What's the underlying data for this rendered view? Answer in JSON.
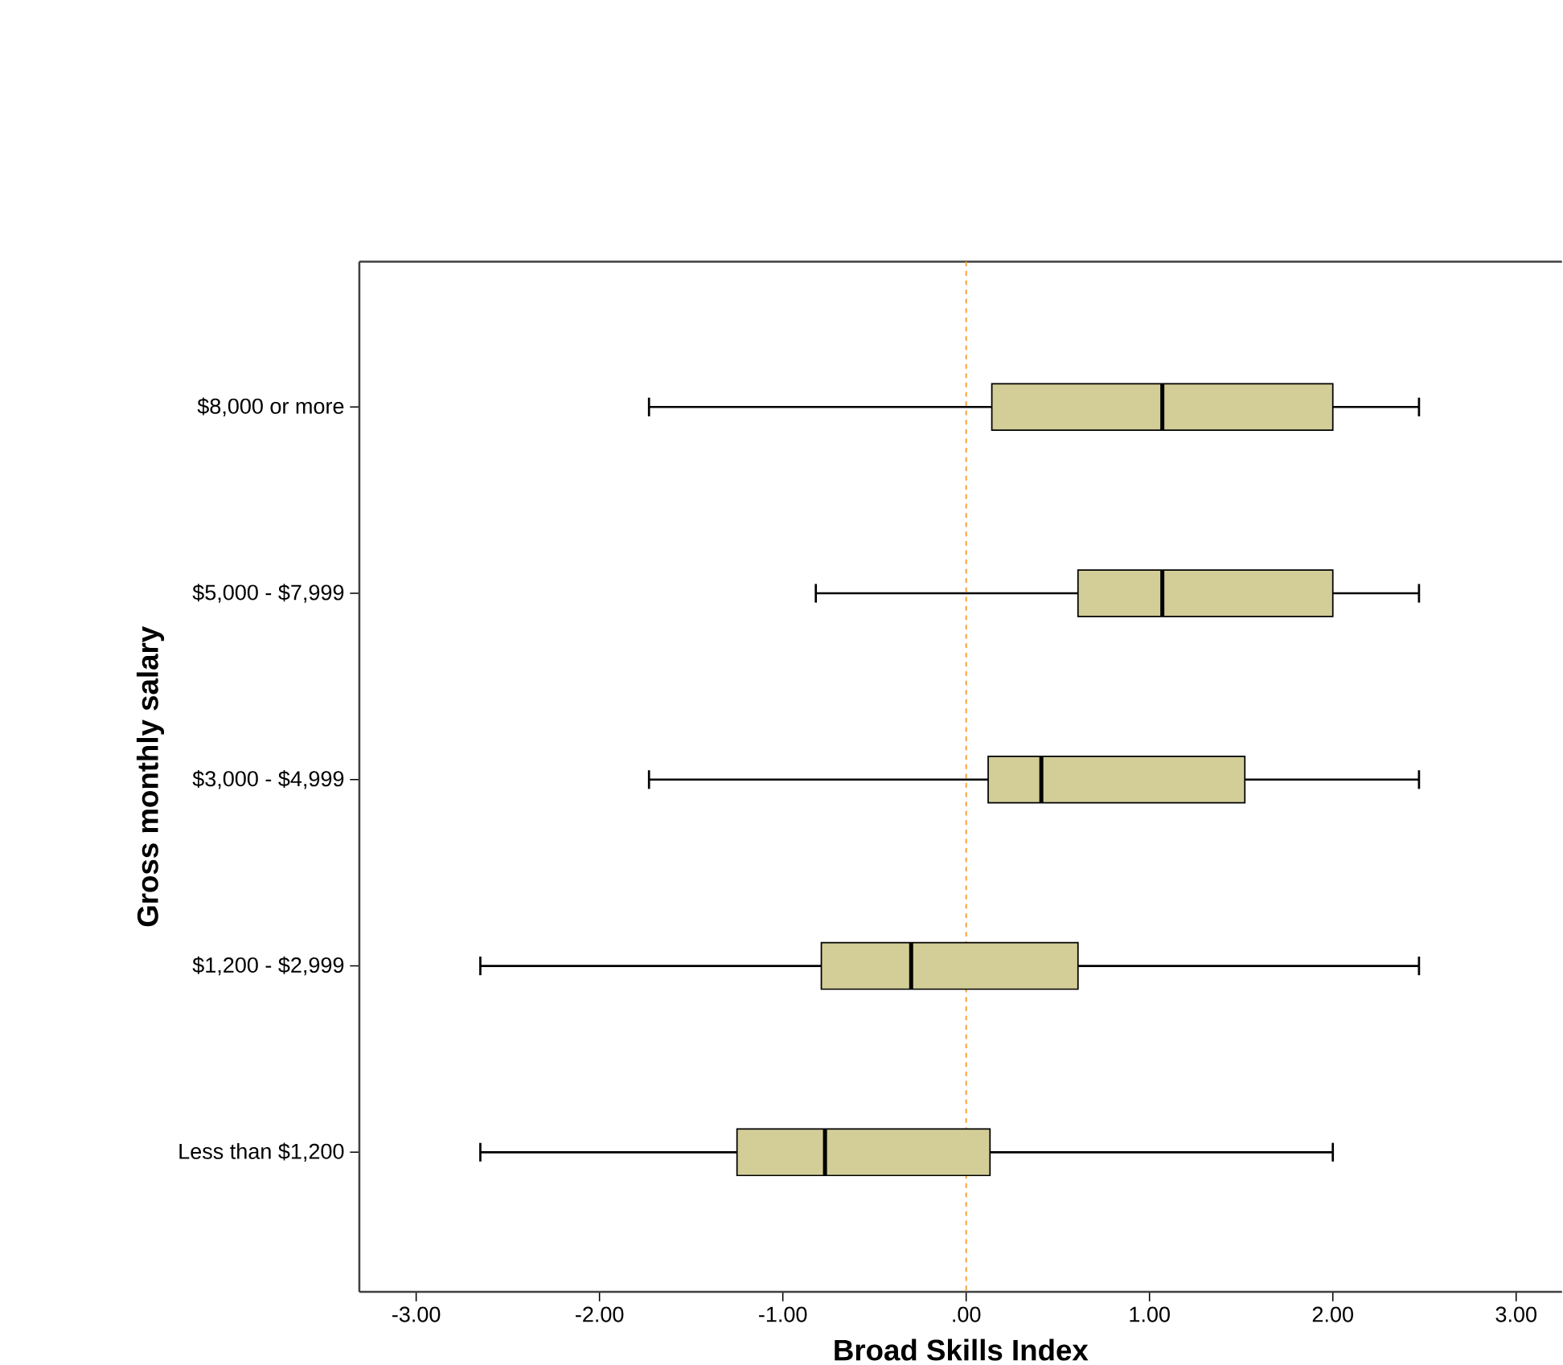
{
  "chart_data": {
    "type": "box",
    "orientation": "horizontal",
    "xlabel": "Broad Skills Index",
    "ylabel": "Gross monthly salary",
    "categories": [
      "$8,000 or more",
      "$5,000 - $7,999",
      "$3,000 - $4,999",
      "$1,200 - $2,999",
      "Less than $1,200"
    ],
    "color": "#d3ce98",
    "boxes": [
      {
        "low": -1.73,
        "q1": 0.14,
        "median": 1.07,
        "q3": 2.0,
        "high": 2.47
      },
      {
        "low": -0.82,
        "q1": 0.61,
        "median": 1.07,
        "q3": 2.0,
        "high": 2.47
      },
      {
        "low": -1.73,
        "q1": 0.12,
        "median": 0.41,
        "q3": 1.52,
        "high": 2.47
      },
      {
        "low": -2.65,
        "q1": -0.79,
        "median": -0.3,
        "q3": 0.61,
        "high": 2.47
      },
      {
        "low": -2.65,
        "q1": -1.25,
        "median": -0.77,
        "q3": 0.13,
        "high": 2.0
      }
    ],
    "xlim": [
      -3.31,
      3.25
    ],
    "xticks": [
      {
        "value": -3,
        "label": "-3.00"
      },
      {
        "value": -2,
        "label": "-2.00"
      },
      {
        "value": -1,
        "label": "-1.00"
      },
      {
        "value": 0,
        "label": ".00"
      },
      {
        "value": 1,
        "label": "1.00"
      },
      {
        "value": 2,
        "label": "2.00"
      },
      {
        "value": 3,
        "label": "3.00"
      }
    ],
    "ref_lines": [
      {
        "axis": "x",
        "value": 0,
        "color": "#f5a030",
        "line_style": "dashed"
      }
    ]
  }
}
